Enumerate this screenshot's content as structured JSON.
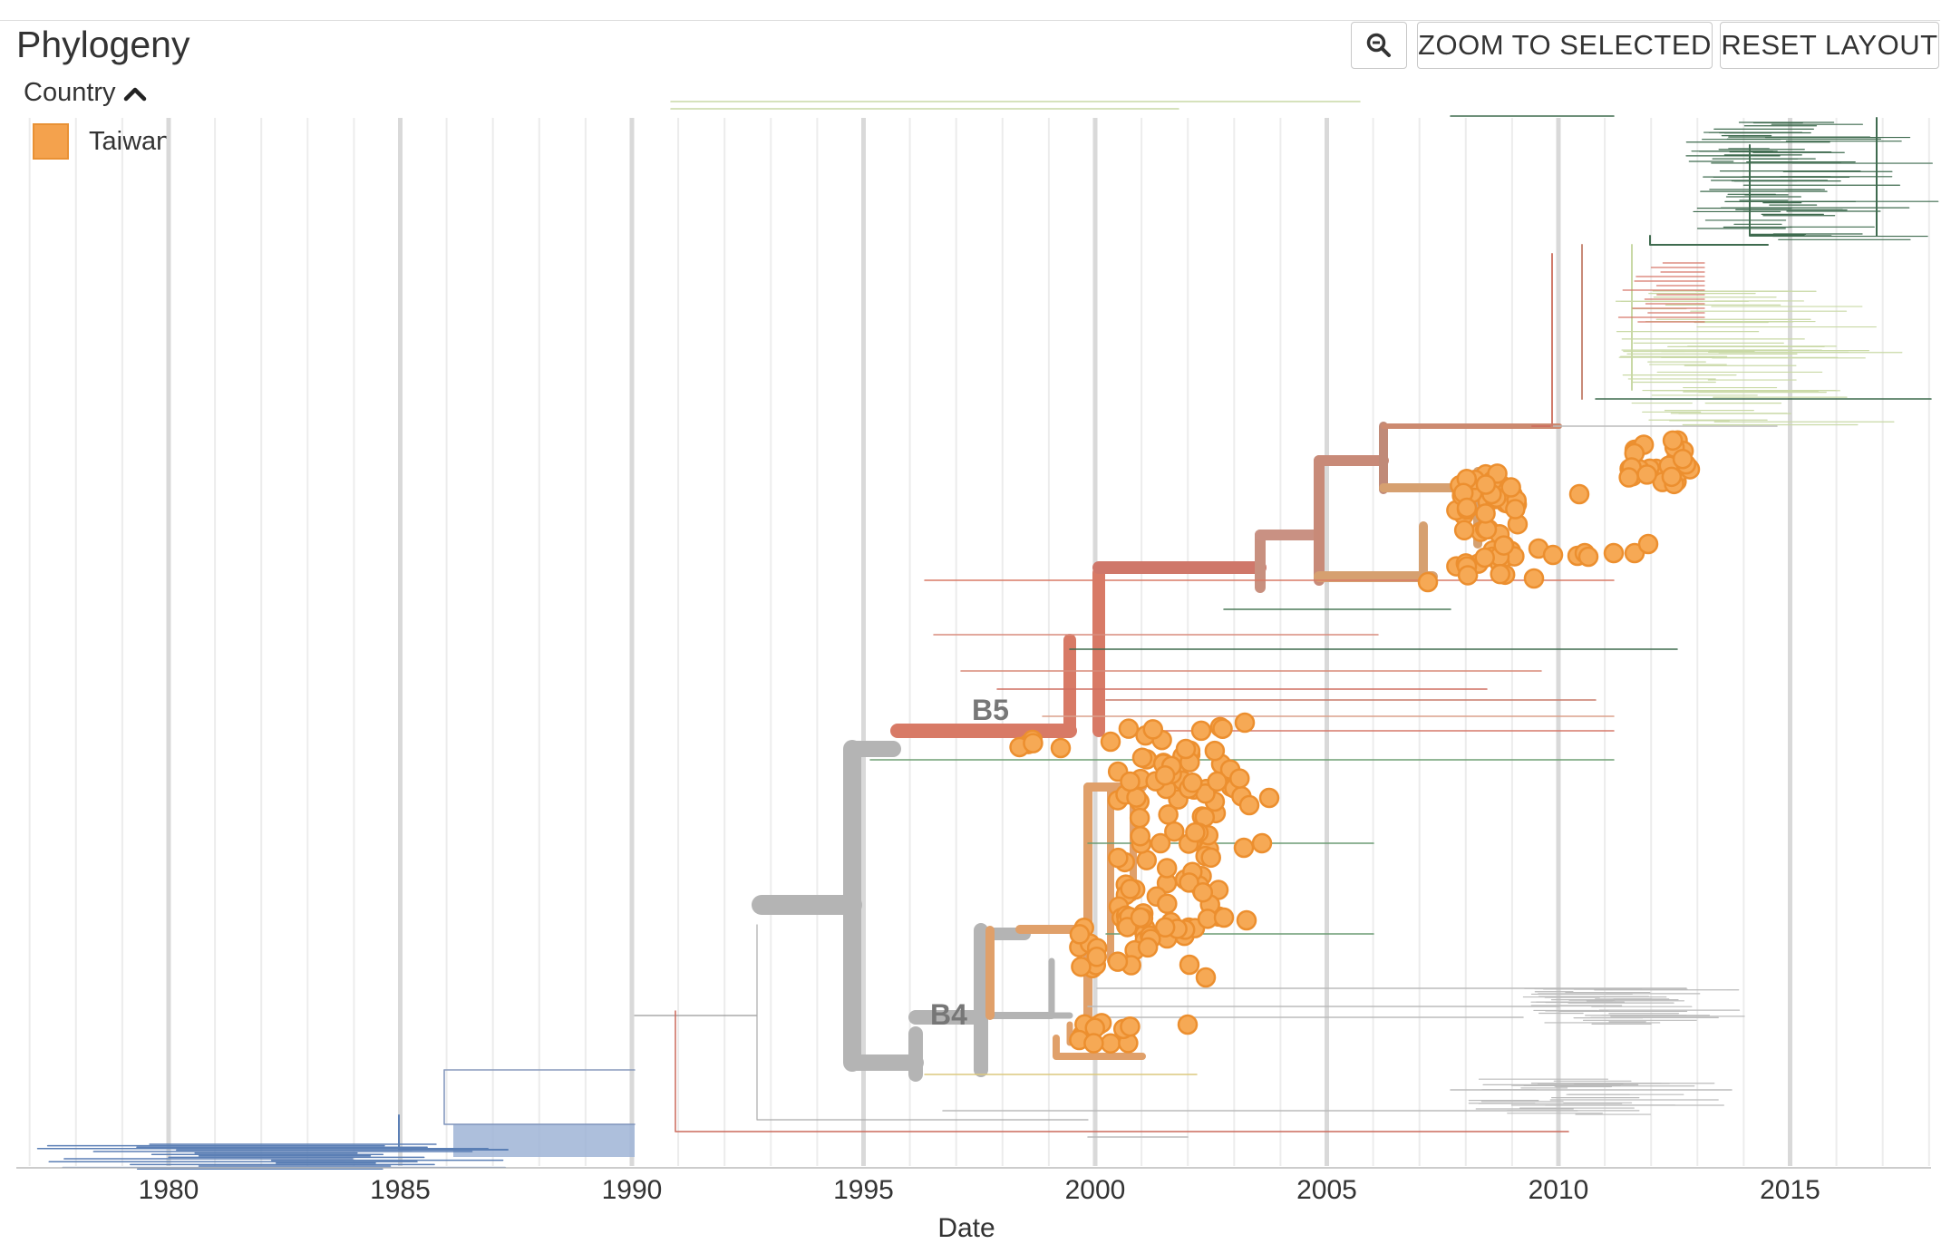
{
  "panel": {
    "title": "Phylogeny",
    "zoom_icon": "zoom-out-icon",
    "zoom_to_selected_label": "ZOOM TO SELECTED",
    "reset_layout_label": "RESET LAYOUT"
  },
  "legend": {
    "toggle_label": "Country",
    "toggle_icon": "chevron-up-icon",
    "items": [
      {
        "label": "Taiwan",
        "color": "#f4a24d"
      }
    ]
  },
  "tree": {
    "xlabel": "Date",
    "ticks": [
      "1980",
      "1985",
      "1990",
      "1995",
      "2000",
      "2005",
      "2010",
      "2015"
    ],
    "clade_labels": [
      "B5",
      "B4"
    ],
    "colors": {
      "taiwan": "#f4a24d",
      "taiwan_branch": "#e0a06a",
      "gray": "#b4b4b4",
      "red": "#d87a66",
      "blue": "#5b7fb5",
      "green_dark": "#3f6b4f",
      "green_light": "#c9d9a6"
    }
  }
}
